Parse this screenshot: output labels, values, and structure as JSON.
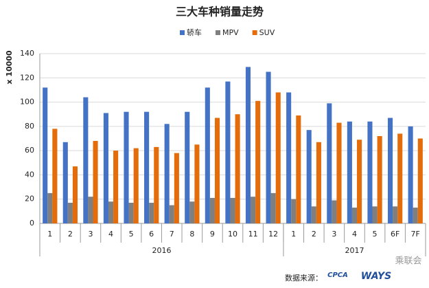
{
  "chart_data": {
    "type": "bar",
    "title": "三大车种销量走势",
    "y_label": "x 10000",
    "category_groups": [
      {
        "label": "2016",
        "categories": [
          "1",
          "2",
          "3",
          "4",
          "5",
          "6",
          "7",
          "8",
          "9",
          "10",
          "11",
          "12"
        ]
      },
      {
        "label": "2017",
        "categories": [
          "1",
          "2",
          "3",
          "4",
          "5",
          "6F",
          "7F"
        ]
      }
    ],
    "series": [
      {
        "name": "轿车",
        "color": "#4472c4",
        "values": [
          112,
          67,
          104,
          91,
          92,
          92,
          82,
          92,
          112,
          117,
          129,
          125,
          108,
          77,
          99,
          84,
          84,
          87,
          80
        ]
      },
      {
        "name": "MPV",
        "color": "#7f7f7f",
        "values": [
          25,
          17,
          22,
          18,
          17,
          17,
          15,
          18,
          21,
          21,
          22,
          25,
          20,
          14,
          19,
          13,
          14,
          14,
          13
        ]
      },
      {
        "name": "SUV",
        "color": "#e46c0a",
        "values": [
          78,
          47,
          68,
          60,
          62,
          63,
          58,
          65,
          87,
          90,
          101,
          108,
          89,
          67,
          83,
          69,
          72,
          74,
          70
        ]
      }
    ],
    "ylim": [
      0,
      140
    ],
    "yticks": [
      0,
      20,
      40,
      60,
      80,
      100,
      120,
      140
    ],
    "grid": true,
    "legend": "top",
    "source": "数据来源：",
    "logos": [
      "CPCA",
      "WAYS"
    ],
    "watermark": "乘联会"
  }
}
